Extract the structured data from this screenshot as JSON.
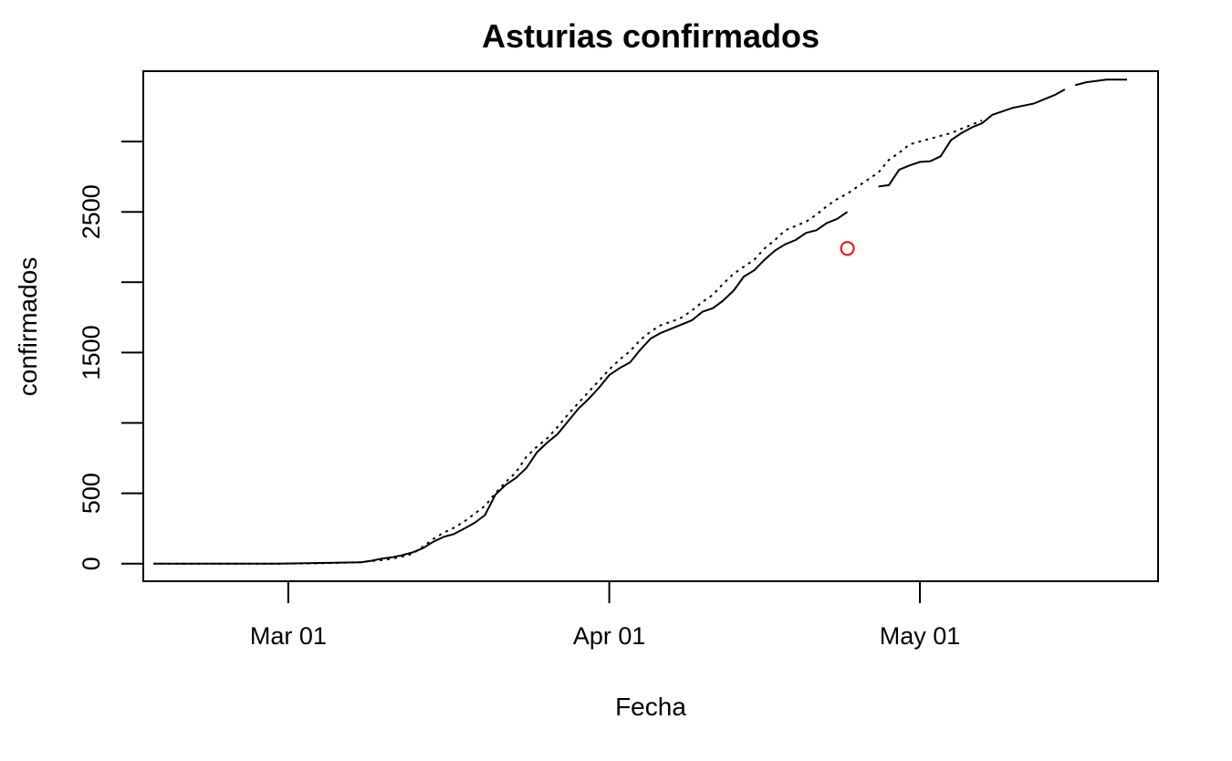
{
  "chart_data": {
    "type": "line",
    "title": "Asturias confirmados",
    "xlabel": "Fecha",
    "ylabel": "confirmados",
    "x_ticks": [
      {
        "date": "2020-03-01",
        "label": "Mar 01"
      },
      {
        "date": "2020-04-01",
        "label": "Apr 01"
      },
      {
        "date": "2020-05-01",
        "label": "May 01"
      }
    ],
    "y_ticks": [
      {
        "value": 0,
        "label": "0",
        "labeled": true
      },
      {
        "value": 500,
        "label": "500",
        "labeled": true
      },
      {
        "value": 1000,
        "label": "",
        "labeled": false
      },
      {
        "value": 1500,
        "label": "1500",
        "labeled": true
      },
      {
        "value": 2000,
        "label": "",
        "labeled": false
      },
      {
        "value": 2500,
        "label": "2500",
        "labeled": true
      },
      {
        "value": 3000,
        "label": "",
        "labeled": false
      }
    ],
    "xlim": [
      "2020-02-16",
      "2020-05-24"
    ],
    "ylim": [
      -125,
      3500
    ],
    "series": [
      {
        "style": "solid",
        "color": "#000000",
        "points": [
          [
            "2020-02-17",
            0
          ],
          [
            "2020-02-20",
            0
          ],
          [
            "2020-02-23",
            0
          ],
          [
            "2020-02-26",
            0
          ],
          [
            "2020-02-29",
            0
          ],
          [
            "2020-03-02",
            2
          ],
          [
            "2020-03-04",
            5
          ],
          [
            "2020-03-06",
            7
          ],
          [
            "2020-03-08",
            10
          ],
          [
            "2020-03-09",
            20
          ],
          [
            "2020-03-10",
            35
          ],
          [
            "2020-03-11",
            45
          ],
          [
            "2020-03-12",
            60
          ],
          [
            "2020-03-13",
            80
          ],
          [
            "2020-03-14",
            110
          ],
          [
            "2020-03-15",
            155
          ],
          [
            "2020-03-16",
            190
          ],
          [
            "2020-03-17",
            210
          ],
          [
            "2020-03-18",
            250
          ],
          [
            "2020-03-19",
            290
          ],
          [
            "2020-03-20",
            345
          ],
          [
            "2020-03-21",
            490
          ],
          [
            "2020-03-22",
            560
          ],
          [
            "2020-03-23",
            610
          ],
          [
            "2020-03-24",
            680
          ],
          [
            "2020-03-25",
            790
          ],
          [
            "2020-03-26",
            860
          ],
          [
            "2020-03-27",
            920
          ],
          [
            "2020-03-28",
            1010
          ],
          [
            "2020-03-29",
            1100
          ],
          [
            "2020-03-30",
            1170
          ],
          [
            "2020-03-31",
            1250
          ],
          [
            "2020-04-01",
            1340
          ],
          [
            "2020-04-02",
            1390
          ],
          [
            "2020-04-03",
            1430
          ],
          [
            "2020-04-04",
            1520
          ],
          [
            "2020-04-05",
            1600
          ],
          [
            "2020-04-06",
            1640
          ],
          [
            "2020-04-07",
            1670
          ],
          [
            "2020-04-08",
            1700
          ],
          [
            "2020-04-09",
            1730
          ],
          [
            "2020-04-10",
            1790
          ],
          [
            "2020-04-11",
            1815
          ],
          [
            "2020-04-12",
            1870
          ],
          [
            "2020-04-13",
            1940
          ],
          [
            "2020-04-14",
            2040
          ],
          [
            "2020-04-15",
            2085
          ],
          [
            "2020-04-16",
            2160
          ],
          [
            "2020-04-17",
            2225
          ],
          [
            "2020-04-18",
            2270
          ],
          [
            "2020-04-19",
            2300
          ],
          [
            "2020-04-20",
            2350
          ],
          [
            "2020-04-21",
            2370
          ],
          [
            "2020-04-22",
            2420
          ],
          [
            "2020-04-23",
            2450
          ],
          [
            "2020-04-24",
            2500
          ],
          [
            null,
            null
          ],
          [
            "2020-04-27",
            2680
          ],
          [
            "2020-04-28",
            2690
          ],
          [
            "2020-04-29",
            2800
          ],
          [
            "2020-04-30",
            2830
          ],
          [
            "2020-05-01",
            2855
          ],
          [
            "2020-05-02",
            2860
          ],
          [
            "2020-05-03",
            2895
          ],
          [
            "2020-05-04",
            3010
          ],
          [
            "2020-05-05",
            3060
          ],
          [
            "2020-05-06",
            3100
          ],
          [
            "2020-05-07",
            3130
          ],
          [
            "2020-05-08",
            3190
          ],
          [
            "2020-05-09",
            3215
          ],
          [
            "2020-05-10",
            3240
          ],
          [
            "2020-05-11",
            3255
          ],
          [
            "2020-05-12",
            3270
          ],
          [
            "2020-05-13",
            3300
          ],
          [
            "2020-05-14",
            3330
          ],
          [
            "2020-05-15",
            3370
          ],
          [
            null,
            null
          ],
          [
            "2020-05-16",
            3400
          ],
          [
            "2020-05-17",
            3420
          ],
          [
            "2020-05-18",
            3430
          ],
          [
            "2020-05-19",
            3440
          ],
          [
            "2020-05-20",
            3440
          ],
          [
            "2020-05-21",
            3440
          ]
        ]
      },
      {
        "style": "dotted",
        "color": "#000000",
        "points": [
          [
            "2020-02-17",
            0
          ],
          [
            "2020-02-20",
            0
          ],
          [
            "2020-02-23",
            0
          ],
          [
            "2020-02-26",
            0
          ],
          [
            "2020-02-29",
            0
          ],
          [
            "2020-03-02",
            1
          ],
          [
            "2020-03-04",
            3
          ],
          [
            "2020-03-06",
            6
          ],
          [
            "2020-03-08",
            10
          ],
          [
            "2020-03-09",
            18
          ],
          [
            "2020-03-10",
            25
          ],
          [
            "2020-03-11",
            35
          ],
          [
            "2020-03-12",
            50
          ],
          [
            "2020-03-13",
            70
          ],
          [
            "2020-03-14",
            120
          ],
          [
            "2020-03-15",
            175
          ],
          [
            "2020-03-16",
            220
          ],
          [
            "2020-03-17",
            255
          ],
          [
            "2020-03-18",
            300
          ],
          [
            "2020-03-19",
            355
          ],
          [
            "2020-03-20",
            410
          ],
          [
            "2020-03-21",
            500
          ],
          [
            "2020-03-22",
            580
          ],
          [
            "2020-03-23",
            650
          ],
          [
            "2020-03-24",
            760
          ],
          [
            "2020-03-25",
            830
          ],
          [
            "2020-03-26",
            890
          ],
          [
            "2020-03-27",
            970
          ],
          [
            "2020-03-28",
            1060
          ],
          [
            "2020-03-29",
            1140
          ],
          [
            "2020-03-30",
            1220
          ],
          [
            "2020-03-31",
            1300
          ],
          [
            "2020-04-01",
            1380
          ],
          [
            "2020-04-02",
            1450
          ],
          [
            "2020-04-03",
            1510
          ],
          [
            "2020-04-04",
            1590
          ],
          [
            "2020-04-05",
            1650
          ],
          [
            "2020-04-06",
            1695
          ],
          [
            "2020-04-07",
            1720
          ],
          [
            "2020-04-08",
            1750
          ],
          [
            "2020-04-09",
            1800
          ],
          [
            "2020-04-10",
            1860
          ],
          [
            "2020-04-11",
            1910
          ],
          [
            "2020-04-12",
            1990
          ],
          [
            "2020-04-13",
            2060
          ],
          [
            "2020-04-14",
            2110
          ],
          [
            "2020-04-15",
            2160
          ],
          [
            "2020-04-16",
            2240
          ],
          [
            "2020-04-17",
            2300
          ],
          [
            "2020-04-18",
            2370
          ],
          [
            "2020-04-19",
            2400
          ],
          [
            "2020-04-20",
            2430
          ],
          [
            "2020-04-21",
            2480
          ],
          [
            "2020-04-22",
            2540
          ],
          [
            "2020-04-23",
            2590
          ],
          [
            "2020-04-24",
            2630
          ],
          [
            "2020-04-25",
            2680
          ],
          [
            "2020-04-26",
            2730
          ],
          [
            "2020-04-27",
            2780
          ],
          [
            "2020-04-28",
            2870
          ],
          [
            "2020-04-29",
            2920
          ],
          [
            "2020-04-30",
            2980
          ],
          [
            "2020-05-01",
            3000
          ],
          [
            "2020-05-02",
            3020
          ],
          [
            "2020-05-03",
            3040
          ],
          [
            "2020-05-04",
            3060
          ],
          [
            "2020-05-05",
            3090
          ],
          [
            "2020-05-06",
            3120
          ],
          [
            "2020-05-07",
            3150
          ]
        ]
      }
    ],
    "markers": [
      {
        "date": "2020-04-24",
        "value": 2240,
        "shape": "open-circle",
        "color": "#ff0000"
      }
    ],
    "grid": false,
    "legend": "none"
  }
}
